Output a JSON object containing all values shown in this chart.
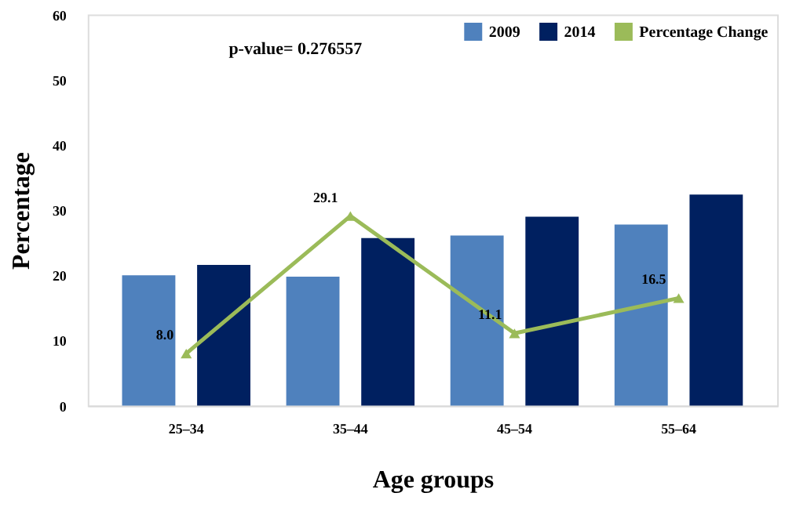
{
  "chart_data": {
    "type": "bar",
    "xlabel": "Age groups",
    "ylabel": "Percentage",
    "categories": [
      "25–34",
      "35–44",
      "45–54",
      "55–64"
    ],
    "series": [
      {
        "name": "2009",
        "color": "#4f81bd",
        "values": [
          20.0,
          19.8,
          26.1,
          27.8
        ]
      },
      {
        "name": "2014",
        "color": "#002060",
        "values": [
          21.6,
          25.7,
          29.0,
          32.4
        ]
      },
      {
        "name": "Percentage Change",
        "type": "line",
        "color": "#9bbb59",
        "marker": "triangle",
        "values": [
          8.0,
          29.1,
          11.1,
          16.5
        ],
        "value_labels": [
          "8.0",
          "29.1",
          "11.1",
          "16.5"
        ]
      }
    ],
    "ylim": [
      0,
      60
    ],
    "yticks": [
      0,
      10,
      20,
      30,
      40,
      50,
      60
    ],
    "grid": false,
    "legend": "top right",
    "annotations": [
      "p-value= 0.276557"
    ]
  }
}
